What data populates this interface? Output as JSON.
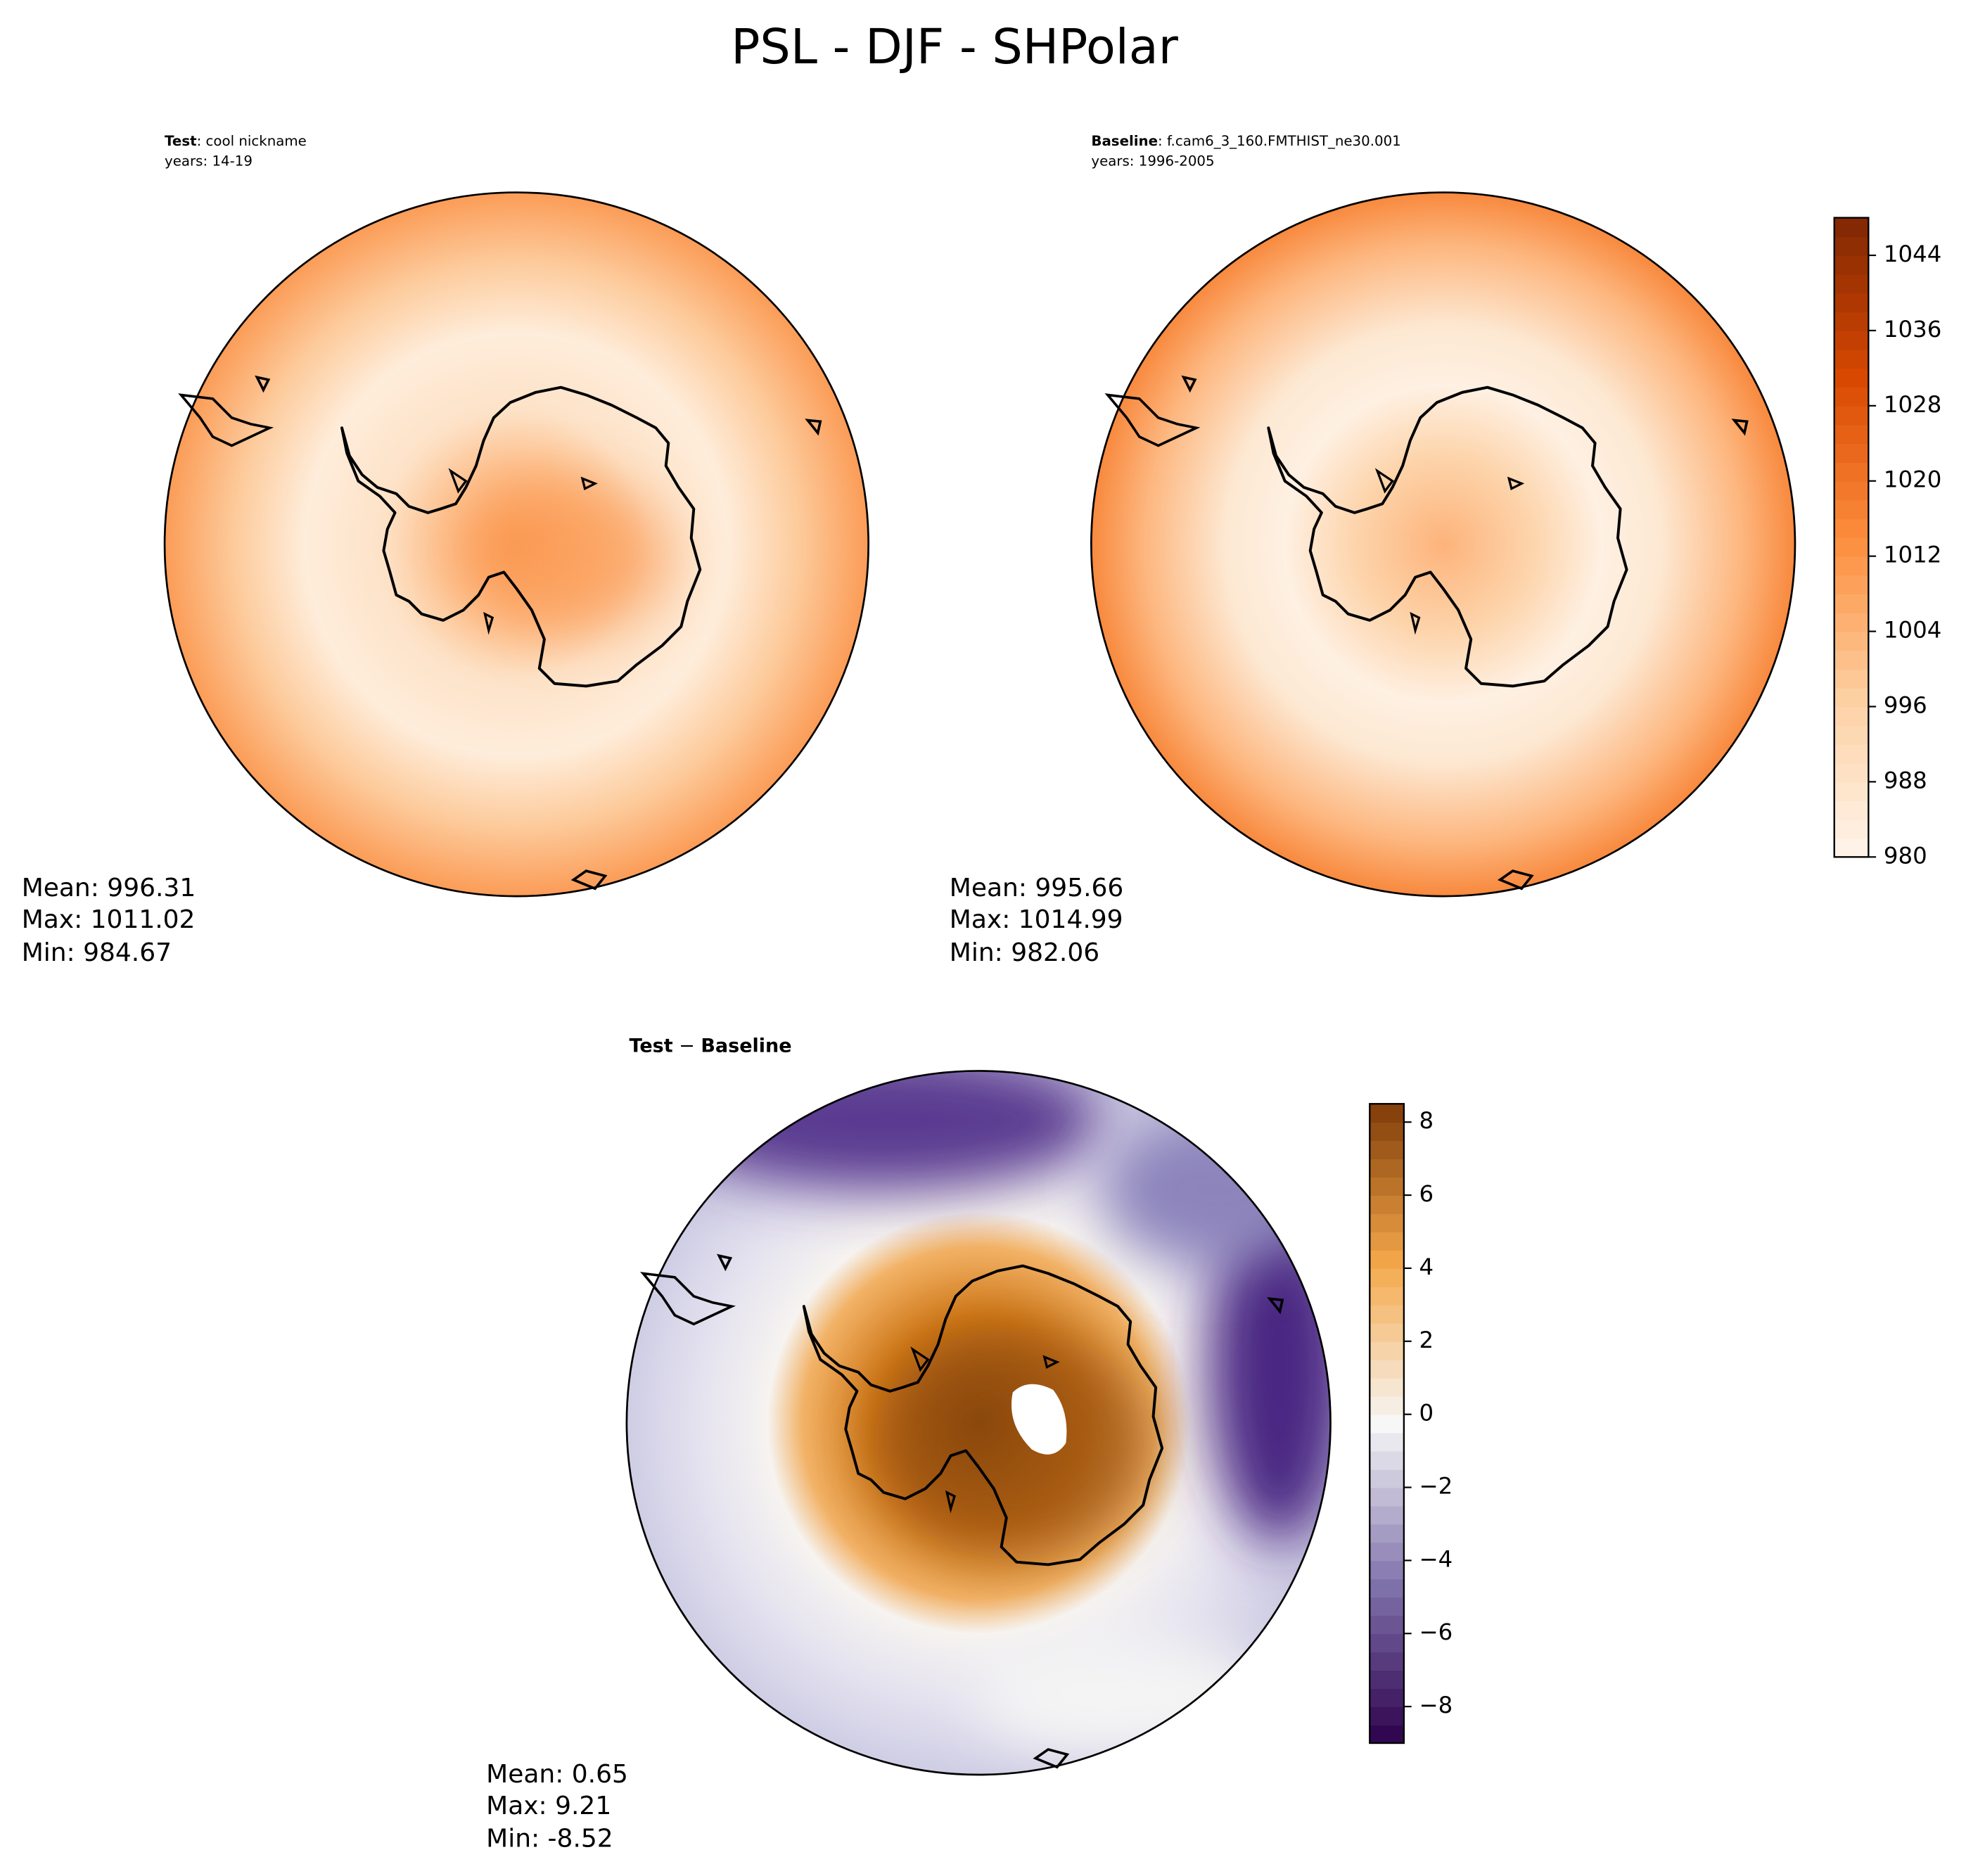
{
  "header": {
    "title": "PSL - DJF - SHPolar"
  },
  "panels": [
    {
      "label_bold": "Test",
      "label": ": cool nickname",
      "years": "years: 14-19",
      "stats": [
        "Mean: 996.31",
        "Max: 1011.02",
        "Min: 984.67"
      ]
    },
    {
      "label_bold": "Baseline",
      "label": ": f.cam6_3_160.FMTHIST_ne30.001",
      "years": "years: 1996-2005",
      "stats": [
        "Mean: 995.66",
        "Max: 1014.99",
        "Min: 982.06"
      ]
    },
    {
      "label_bold": "Test",
      "label_mid": " − ",
      "label_bold2": "Baseline",
      "stats": [
        "Mean:  0.65",
        "Max:  9.21",
        "Min: -8.52"
      ]
    }
  ],
  "colorbars": [
    {
      "lim": [
        980,
        1048
      ],
      "ticks": [
        980,
        988,
        996,
        1004,
        1012,
        1020,
        1028,
        1036,
        1044
      ],
      "colormap": "Oranges"
    },
    {
      "lim": [
        -9,
        8.5
      ],
      "ticks": [
        {
          "value": -8,
          "label": "−8"
        },
        {
          "value": -6,
          "label": "−6"
        },
        {
          "value": -4,
          "label": "−4"
        },
        {
          "value": -2,
          "label": "−2"
        },
        0,
        2,
        4,
        6,
        8
      ],
      "colormap": "PuOr_r"
    }
  ]
}
